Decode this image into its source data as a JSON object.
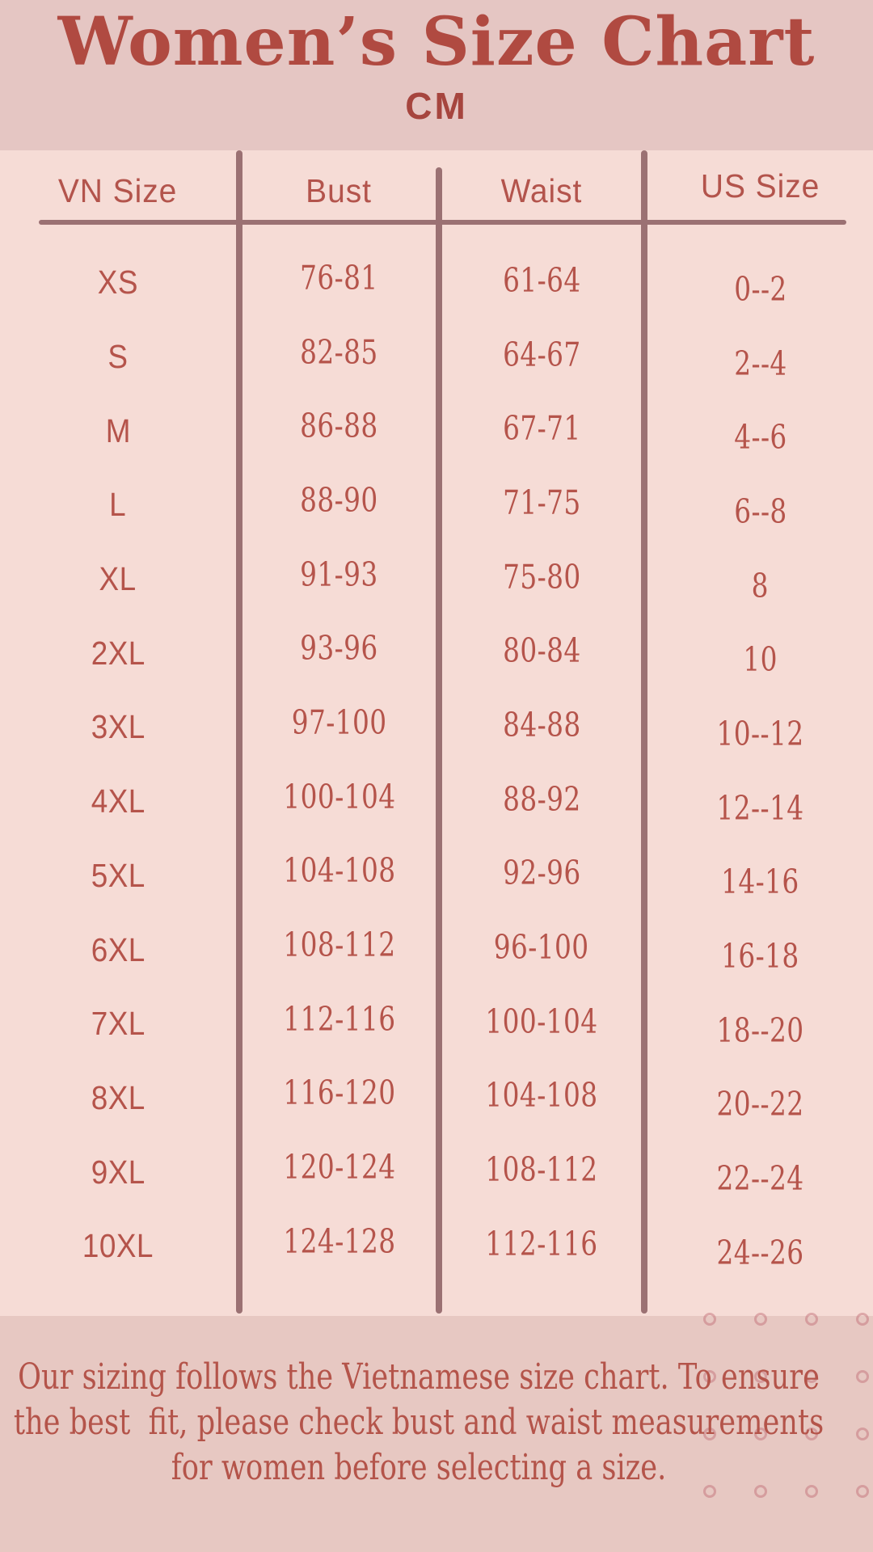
{
  "header": {
    "title": "Women’s Size Chart",
    "unit": "CM"
  },
  "table": {
    "columns": [
      "VN Size",
      "Bust",
      "Waist",
      "US Size"
    ],
    "rows": [
      {
        "vn": "XS",
        "bust": "76-81",
        "waist": "61-64",
        "us": "0--2"
      },
      {
        "vn": "S",
        "bust": "82-85",
        "waist": "64-67",
        "us": "2--4"
      },
      {
        "vn": "M",
        "bust": "86-88",
        "waist": "67-71",
        "us": "4--6"
      },
      {
        "vn": "L",
        "bust": "88-90",
        "waist": "71-75",
        "us": "6--8"
      },
      {
        "vn": "XL",
        "bust": "91-93",
        "waist": "75-80",
        "us": "8"
      },
      {
        "vn": "2XL",
        "bust": "93-96",
        "waist": "80-84",
        "us": "10"
      },
      {
        "vn": "3XL",
        "bust": "97-100",
        "waist": "84-88",
        "us": "10--12"
      },
      {
        "vn": "4XL",
        "bust": "100-104",
        "waist": "88-92",
        "us": "12--14"
      },
      {
        "vn": "5XL",
        "bust": "104-108",
        "waist": "92-96",
        "us": "14-16"
      },
      {
        "vn": "6XL",
        "bust": "108-112",
        "waist": "96-100",
        "us": "16-18"
      },
      {
        "vn": "7XL",
        "bust": "112-116",
        "waist": "100-104",
        "us": "18--20"
      },
      {
        "vn": "8XL",
        "bust": "116-120",
        "waist": "104-108",
        "us": "20--22"
      },
      {
        "vn": "9XL",
        "bust": "120-124",
        "waist": "108-112",
        "us": "22--24"
      },
      {
        "vn": "10XL",
        "bust": "124-128",
        "waist": "112-116",
        "us": "24--26"
      }
    ]
  },
  "footer": {
    "note_lines": [
      "Our sizing follows the Vietnamese size chart. To ensure",
      "the best  fit, please check bust and waist measurements",
      "for women before selecting a size."
    ]
  },
  "colors": {
    "header_band": "#e5c6c3",
    "table_band": "#f6dcd6",
    "footer_band": "#e7c8c2",
    "title_red": "#b04a41",
    "text_red": "#b5544b",
    "divider": "#9b7173",
    "ring": "#c4727a"
  },
  "chart_data": {
    "type": "table",
    "title": "Women’s Size Chart",
    "unit": "CM",
    "columns": [
      "VN Size",
      "Bust",
      "Waist",
      "US Size"
    ],
    "rows": [
      [
        "XS",
        "76-81",
        "61-64",
        "0--2"
      ],
      [
        "S",
        "82-85",
        "64-67",
        "2--4"
      ],
      [
        "M",
        "86-88",
        "67-71",
        "4--6"
      ],
      [
        "L",
        "88-90",
        "71-75",
        "6--8"
      ],
      [
        "XL",
        "91-93",
        "75-80",
        "8"
      ],
      [
        "2XL",
        "93-96",
        "80-84",
        "10"
      ],
      [
        "3XL",
        "97-100",
        "84-88",
        "10--12"
      ],
      [
        "4XL",
        "100-104",
        "88-92",
        "12--14"
      ],
      [
        "5XL",
        "104-108",
        "92-96",
        "14-16"
      ],
      [
        "6XL",
        "108-112",
        "96-100",
        "16-18"
      ],
      [
        "7XL",
        "112-116",
        "100-104",
        "18--20"
      ],
      [
        "8XL",
        "116-120",
        "104-108",
        "20--22"
      ],
      [
        "9XL",
        "120-124",
        "108-112",
        "22--24"
      ],
      [
        "10XL",
        "124-128",
        "112-116",
        "24--26"
      ]
    ],
    "note": "Our sizing follows the Vietnamese size chart. To ensure the best fit, please check bust and waist measurements for women before selecting a size."
  }
}
